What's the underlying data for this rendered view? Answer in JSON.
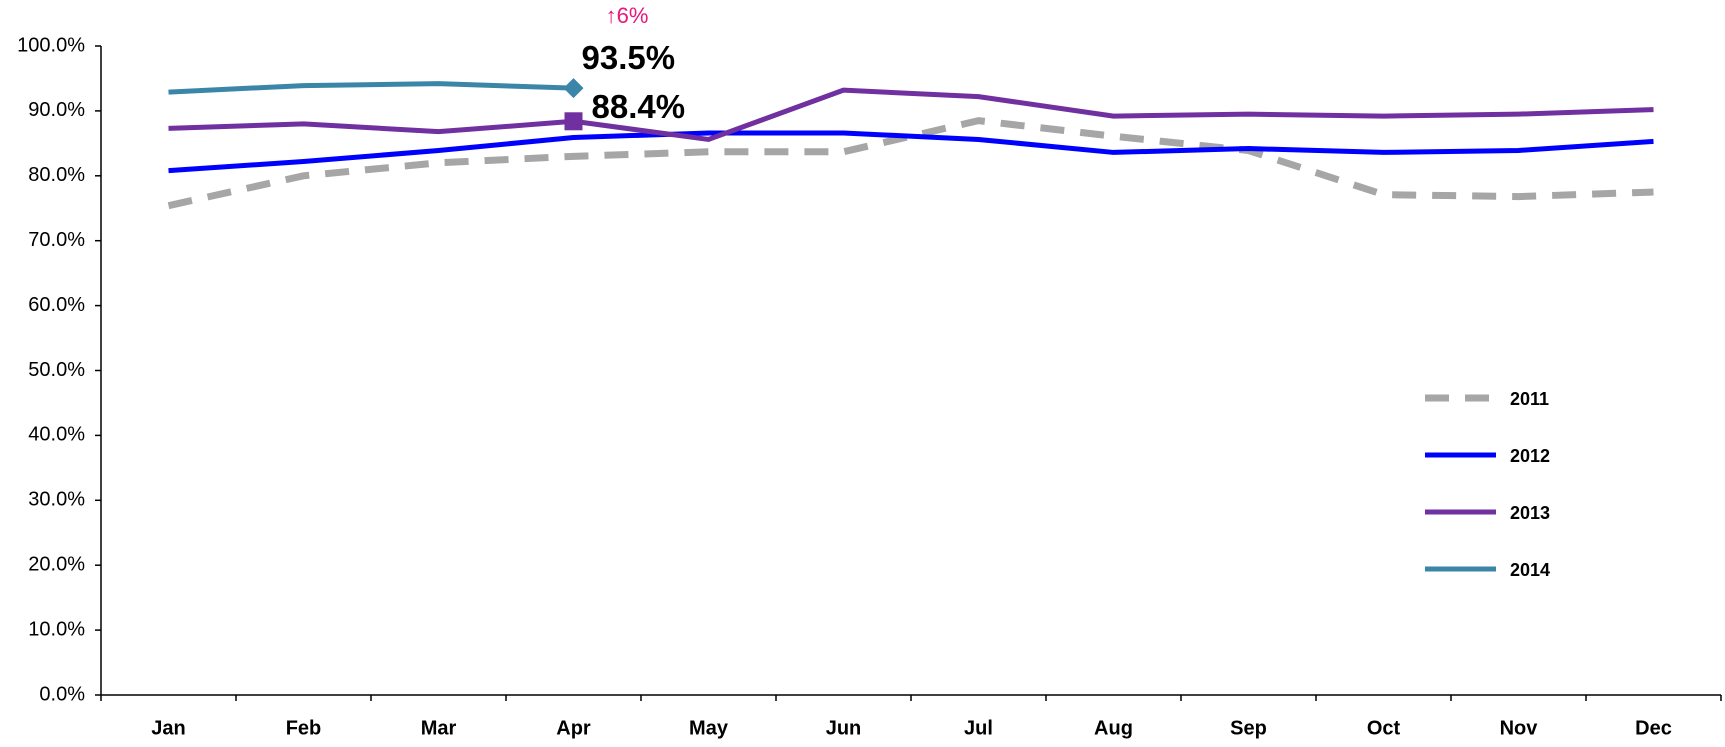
{
  "chart_data": {
    "type": "line",
    "categories": [
      "Jan",
      "Feb",
      "Mar",
      "Apr",
      "May",
      "Jun",
      "Jul",
      "Aug",
      "Sep",
      "Oct",
      "Nov",
      "Dec"
    ],
    "series": [
      {
        "name": "2011",
        "color": "#a6a6a6",
        "style": "dashed",
        "values": [
          75.4,
          80.0,
          82.0,
          83.0,
          83.7,
          83.7,
          88.5,
          86.1,
          83.9,
          77.1,
          76.8,
          77.5
        ]
      },
      {
        "name": "2012",
        "color": "#0000ff",
        "style": "solid",
        "values": [
          80.8,
          82.2,
          83.9,
          85.9,
          86.6,
          86.6,
          85.6,
          83.6,
          84.2,
          83.6,
          83.9,
          85.3
        ]
      },
      {
        "name": "2013",
        "color": "#7030a0",
        "style": "solid",
        "marker": "square",
        "values": [
          87.3,
          88.0,
          86.8,
          88.4,
          85.6,
          93.2,
          92.2,
          89.2,
          89.5,
          89.2,
          89.5,
          90.2
        ],
        "value_labels": [
          null,
          null,
          null,
          "88.4%",
          null,
          null,
          null,
          null,
          null,
          null,
          null,
          null
        ]
      },
      {
        "name": "2014",
        "color": "#3b86a8",
        "style": "solid",
        "marker": "diamond",
        "values": [
          92.9,
          93.9,
          94.2,
          93.5,
          null,
          null,
          null,
          null,
          null,
          null,
          null,
          null
        ],
        "value_labels": [
          null,
          null,
          null,
          "93.5%",
          null,
          null,
          null,
          null,
          null,
          null,
          null,
          null
        ]
      }
    ],
    "annotations": [
      {
        "text": "↑6%",
        "color": "#e8177d"
      }
    ],
    "ylim": [
      0,
      100
    ],
    "yticks": [
      {
        "value": 0,
        "label": "0.0%"
      },
      {
        "value": 10,
        "label": "10.0%"
      },
      {
        "value": 20,
        "label": "20.0%"
      },
      {
        "value": 30,
        "label": "30.0%"
      },
      {
        "value": 40,
        "label": "40.0%"
      },
      {
        "value": 50,
        "label": "50.0%"
      },
      {
        "value": 60,
        "label": "60.0%"
      },
      {
        "value": 70,
        "label": "70.0%"
      },
      {
        "value": 80,
        "label": "80.0%"
      },
      {
        "value": 90,
        "label": "90.0%"
      },
      {
        "value": 100,
        "label": "100.0%"
      }
    ],
    "grid": false,
    "legend": "right"
  }
}
